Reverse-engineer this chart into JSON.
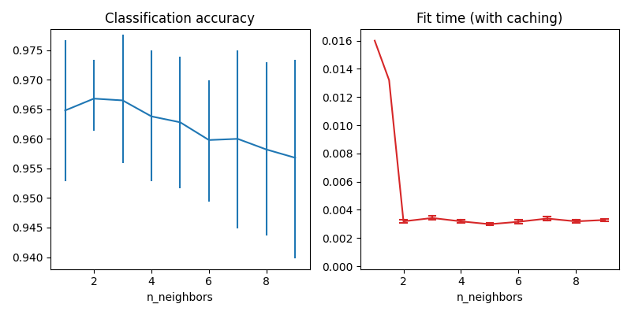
{
  "title_left": "Classification accuracy",
  "title_right": "Fit time (with caching)",
  "xlabel": "n_neighbors",
  "x": [
    1,
    2,
    3,
    4,
    5,
    6,
    7,
    8,
    9
  ],
  "acc_mean": [
    0.9648,
    0.9668,
    0.9665,
    0.9638,
    0.9628,
    0.9598,
    0.96,
    0.9582,
    0.9568
  ],
  "acc_lower": [
    0.953,
    0.9615,
    0.956,
    0.953,
    0.9518,
    0.9495,
    0.945,
    0.9438,
    0.94
  ],
  "acc_upper": [
    0.9765,
    0.9732,
    0.9775,
    0.9748,
    0.9738,
    0.9698,
    0.9748,
    0.9728,
    0.9732
  ],
  "fit_x": [
    1,
    1.5,
    2,
    3,
    4,
    5,
    6,
    7,
    8,
    9
  ],
  "fit_mean": [
    0.016,
    0.0132,
    0.00318,
    0.00342,
    0.00318,
    0.00298,
    0.00315,
    0.00338,
    0.00318,
    0.00328
  ],
  "fit_err": [
    0.0,
    0.0,
    0.0001,
    0.00015,
    0.0001,
    0.0001,
    0.00012,
    0.00015,
    0.0001,
    0.0001
  ],
  "color_left": "#1f77b4",
  "color_right": "#d62728",
  "acc_ylim": [
    0.938,
    0.9785
  ],
  "fit_ylim": [
    -0.0002,
    0.0168
  ],
  "acc_xticks": [
    2,
    4,
    6,
    8
  ],
  "fit_xticks": [
    2,
    4,
    6,
    8
  ],
  "acc_xlim": [
    0.5,
    9.5
  ],
  "fit_xlim": [
    0.5,
    9.5
  ]
}
